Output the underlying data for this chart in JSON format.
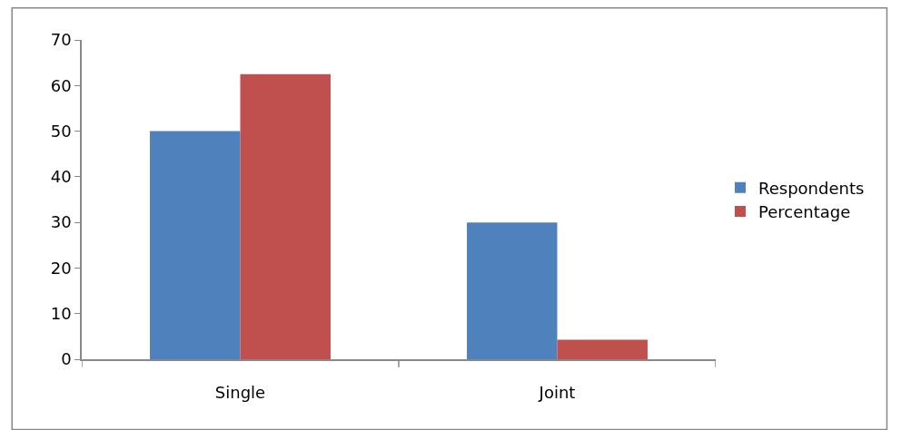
{
  "chart_data": {
    "type": "bar",
    "categories": [
      "Single",
      "Joint"
    ],
    "series": [
      {
        "name": "Respondents",
        "color": "#4f81bd",
        "values": [
          50,
          30
        ]
      },
      {
        "name": "Percentage",
        "color": "#c0504d",
        "values": [
          62.5,
          4.3
        ]
      }
    ],
    "ylim": [
      0,
      70
    ],
    "yticks": [
      0,
      10,
      20,
      30,
      40,
      50,
      60,
      70
    ],
    "legend": "right"
  }
}
